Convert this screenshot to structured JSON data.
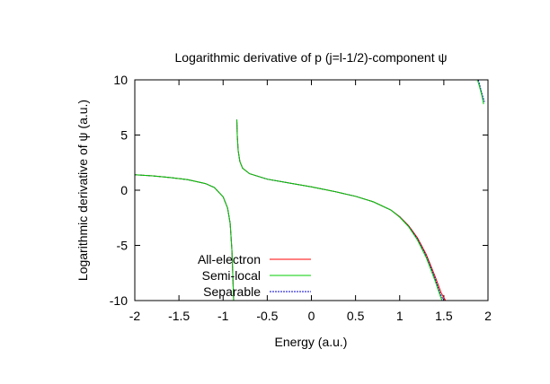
{
  "chart_data": {
    "type": "line",
    "title": "Logarithmic derivative of p (j=l-1/2)-component ψ",
    "xlabel": "Energy (a.u.)",
    "ylabel": "Logarithmic derivative of ψ (a.u.)",
    "xlim": [
      -2,
      2
    ],
    "ylim": [
      -10,
      10
    ],
    "xticks": [
      "-2",
      "-1.5",
      "-1",
      "-0.5",
      "0",
      "0.5",
      "1",
      "1.5",
      "2"
    ],
    "yticks": [
      "-10",
      "-5",
      "0",
      "5",
      "10"
    ],
    "grid": false,
    "legend": "bottom-left",
    "series": [
      {
        "name": "All-electron",
        "color": "#ff0000",
        "segments": [
          [
            [
              -2,
              1.4
            ],
            [
              -1.8,
              1.3
            ],
            [
              -1.6,
              1.15
            ],
            [
              -1.4,
              0.95
            ],
            [
              -1.2,
              0.6
            ],
            [
              -1.1,
              0.25
            ],
            [
              -1.0,
              -0.6
            ],
            [
              -0.95,
              -1.6
            ],
            [
              -0.92,
              -3.0
            ],
            [
              -0.9,
              -5.5
            ],
            [
              -0.88,
              -10
            ]
          ],
          [
            [
              -0.845,
              6.4
            ],
            [
              -0.84,
              5.0
            ],
            [
              -0.83,
              3.6
            ],
            [
              -0.81,
              2.6
            ],
            [
              -0.78,
              2.0
            ],
            [
              -0.7,
              1.5
            ],
            [
              -0.5,
              1.0
            ],
            [
              -0.25,
              0.65
            ],
            [
              0,
              0.3
            ],
            [
              0.25,
              -0.1
            ],
            [
              0.5,
              -0.55
            ],
            [
              0.7,
              -1.05
            ],
            [
              0.9,
              -1.8
            ],
            [
              1.0,
              -2.4
            ],
            [
              1.1,
              -3.2
            ],
            [
              1.2,
              -4.3
            ],
            [
              1.3,
              -5.8
            ],
            [
              1.4,
              -7.8
            ],
            [
              1.47,
              -9.3
            ],
            [
              1.52,
              -10
            ]
          ]
        ]
      },
      {
        "name": "Semi-local",
        "color": "#00cc00",
        "segments": [
          [
            [
              -2,
              1.4
            ],
            [
              -1.8,
              1.3
            ],
            [
              -1.6,
              1.15
            ],
            [
              -1.4,
              0.95
            ],
            [
              -1.2,
              0.6
            ],
            [
              -1.1,
              0.25
            ],
            [
              -1.0,
              -0.6
            ],
            [
              -0.95,
              -1.6
            ],
            [
              -0.92,
              -3.0
            ],
            [
              -0.9,
              -5.5
            ],
            [
              -0.88,
              -10
            ]
          ],
          [
            [
              -0.845,
              6.4
            ],
            [
              -0.84,
              5.0
            ],
            [
              -0.83,
              3.6
            ],
            [
              -0.81,
              2.6
            ],
            [
              -0.78,
              2.0
            ],
            [
              -0.7,
              1.5
            ],
            [
              -0.5,
              1.0
            ],
            [
              -0.25,
              0.65
            ],
            [
              0,
              0.3
            ],
            [
              0.25,
              -0.1
            ],
            [
              0.5,
              -0.55
            ],
            [
              0.7,
              -1.05
            ],
            [
              0.9,
              -1.8
            ],
            [
              1.0,
              -2.45
            ],
            [
              1.1,
              -3.3
            ],
            [
              1.2,
              -4.5
            ],
            [
              1.3,
              -6.1
            ],
            [
              1.4,
              -8.2
            ],
            [
              1.46,
              -9.6
            ],
            [
              1.48,
              -10
            ]
          ],
          [
            [
              1.88,
              10
            ],
            [
              1.9,
              9.5
            ],
            [
              1.93,
              8.6
            ],
            [
              1.95,
              7.8
            ]
          ]
        ]
      },
      {
        "name": "Separable",
        "color": "#0000cc",
        "segments": [
          [
            [
              -2,
              1.4
            ],
            [
              -1.8,
              1.3
            ],
            [
              -1.6,
              1.15
            ],
            [
              -1.4,
              0.95
            ],
            [
              -1.2,
              0.6
            ],
            [
              -1.1,
              0.25
            ],
            [
              -1.0,
              -0.6
            ],
            [
              -0.95,
              -1.6
            ],
            [
              -0.92,
              -3.0
            ],
            [
              -0.9,
              -5.5
            ],
            [
              -0.88,
              -10
            ]
          ],
          [
            [
              -0.845,
              6.4
            ],
            [
              -0.84,
              5.0
            ],
            [
              -0.83,
              3.6
            ],
            [
              -0.81,
              2.6
            ],
            [
              -0.78,
              2.0
            ],
            [
              -0.7,
              1.5
            ],
            [
              -0.5,
              1.0
            ],
            [
              -0.25,
              0.65
            ],
            [
              0,
              0.3
            ],
            [
              0.25,
              -0.1
            ],
            [
              0.5,
              -0.55
            ],
            [
              0.7,
              -1.05
            ],
            [
              0.9,
              -1.8
            ],
            [
              1.0,
              -2.42
            ],
            [
              1.1,
              -3.25
            ],
            [
              1.2,
              -4.4
            ],
            [
              1.3,
              -5.95
            ],
            [
              1.4,
              -8.0
            ],
            [
              1.46,
              -9.4
            ],
            [
              1.5,
              -10
            ]
          ],
          [
            [
              1.89,
              10
            ],
            [
              1.91,
              9.4
            ],
            [
              1.94,
              8.5
            ],
            [
              1.96,
              8.0
            ]
          ]
        ]
      }
    ]
  }
}
